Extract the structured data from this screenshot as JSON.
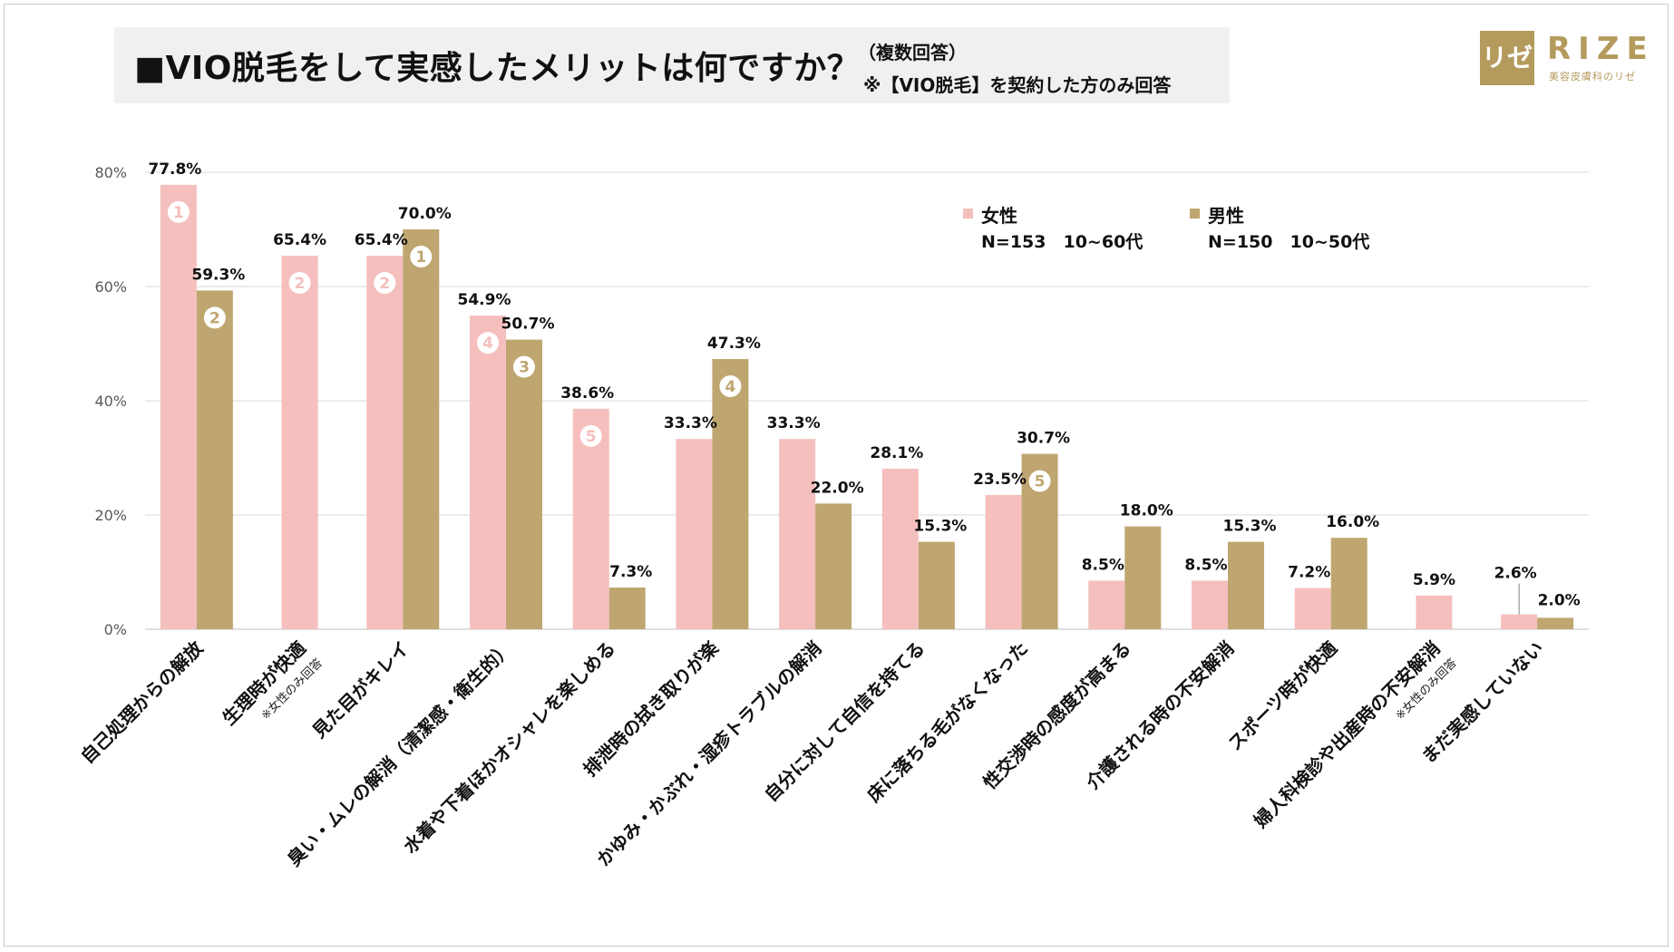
{
  "title": {
    "main": "■VIO脱毛をして実感したメリットは何ですか？",
    "sub": "（複数回答）",
    "note": "※【VIO脱毛】を契約した方のみ回答"
  },
  "logo": {
    "mark": "リゼ",
    "text": "RIZE",
    "sub": "美容皮膚科のリゼ"
  },
  "legend": {
    "female": {
      "name": "女性",
      "desc": "N=153　10~60代"
    },
    "male": {
      "name": "男性",
      "desc": "N=150　10~50代"
    }
  },
  "colors": {
    "female": "#f4bfbd",
    "male": "#bfa670",
    "grid": "#d9d9d9",
    "axis": "#595959"
  },
  "chart_data": {
    "type": "bar",
    "title": "VIO脱毛をして実感したメリットは何ですか？",
    "xlabel": "",
    "ylabel": "",
    "ylim": [
      0,
      80
    ],
    "yticks": [
      "0%",
      "20%",
      "40%",
      "60%",
      "80%"
    ],
    "categories": [
      "自己処理からの解放",
      "生理時が快適",
      "見た目がキレイ",
      "臭い・ムレの解消（清潔感・衛生的）",
      "水着や下着ほかオシャレを楽しめる",
      "排泄時の拭き取りが楽",
      "かゆみ・かぶれ・湿疹トラブルの解消",
      "自分に対して自信を持てる",
      "床に落ちる毛がなくなった",
      "性交渉時の感度が高まる",
      "介護される時の不安解消",
      "スポーツ時が快適",
      "婦人科検診や出産時の不安解消",
      "まだ実感していない"
    ],
    "category_notes": [
      "",
      "※女性のみ回答",
      "",
      "",
      "",
      "",
      "",
      "",
      "",
      "",
      "",
      "",
      "※女性のみ回答",
      ""
    ],
    "series": [
      {
        "name": "女性",
        "values": [
          77.8,
          65.4,
          65.4,
          54.9,
          38.6,
          33.3,
          33.3,
          28.1,
          23.5,
          8.5,
          8.5,
          7.2,
          5.9,
          2.6
        ],
        "labels": [
          "77.8%",
          "65.4%",
          "65.4%",
          "54.9%",
          "38.6%",
          "33.3%",
          "33.3%",
          "28.1%",
          "23.5%",
          "8.5%",
          "8.5%",
          "7.2%",
          "5.9%",
          "2.6%"
        ],
        "ranks": [
          "1",
          "2",
          "2",
          "4",
          "5",
          "",
          "",
          "",
          "",
          "",
          "",
          "",
          "",
          ""
        ]
      },
      {
        "name": "男性",
        "values": [
          59.3,
          null,
          70.0,
          50.7,
          7.3,
          47.3,
          22.0,
          15.3,
          30.7,
          18.0,
          15.3,
          16.0,
          null,
          2.0
        ],
        "labels": [
          "59.3%",
          "",
          "70.0%",
          "50.7%",
          "7.3%",
          "47.3%",
          "22.0%",
          "15.3%",
          "30.7%",
          "18.0%",
          "15.3%",
          "16.0%",
          "",
          "2.0%"
        ],
        "ranks": [
          "2",
          "",
          "1",
          "3",
          "",
          "4",
          "",
          "",
          "5",
          "",
          "",
          "",
          "",
          ""
        ]
      }
    ]
  }
}
